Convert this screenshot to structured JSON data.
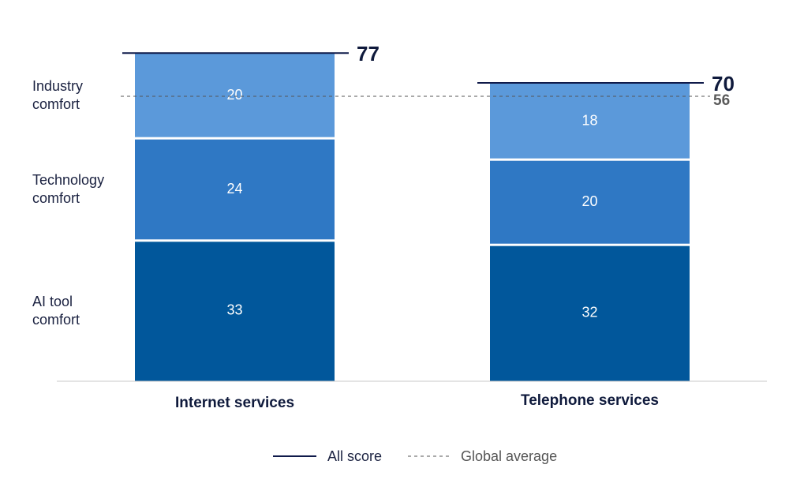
{
  "chart_data": {
    "type": "bar",
    "stacked": true,
    "categories": [
      "Internet services",
      "Telephone services"
    ],
    "series": [
      {
        "name": "AI tool comfort",
        "values": [
          33,
          32
        ],
        "color": "#01579b"
      },
      {
        "name": "Technology comfort",
        "values": [
          24,
          20
        ],
        "color": "#2f78c4"
      },
      {
        "name": "Industry comfort",
        "values": [
          20,
          18
        ],
        "color": "#5b99da"
      }
    ],
    "totals": [
      77,
      70
    ],
    "global_average": 56,
    "row_labels": [
      {
        "line1": "AI tool",
        "line2": "comfort"
      },
      {
        "line1": "Technology",
        "line2": "comfort"
      },
      {
        "line1": "Industry",
        "line2": "comfort"
      }
    ],
    "legend": [
      {
        "label": "All score",
        "style": "solid",
        "color": "#0f1a4a"
      },
      {
        "label": "Global average",
        "style": "dashed",
        "color": "#555555"
      }
    ],
    "ylim": [
      0,
      77
    ],
    "legend_position": "bottom-center",
    "grid": false
  }
}
